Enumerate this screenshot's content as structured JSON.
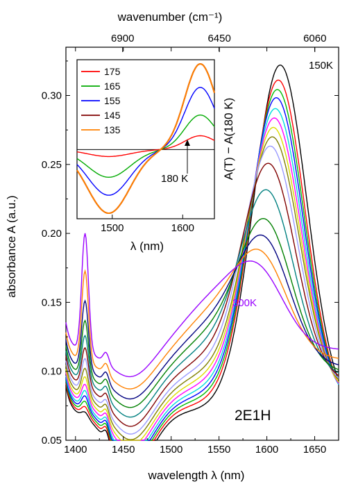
{
  "chart_data": [
    {
      "type": "line",
      "title": "",
      "xlabel": "wavelength λ (nm)",
      "ylabel": "absorbance A (a.u.)",
      "top_xlabel": "wavenumber (cm⁻¹)",
      "xlim": [
        1390,
        1675
      ],
      "ylim": [
        0.05,
        0.335
      ],
      "xticks": [
        "1400",
        "1450",
        "1500",
        "1550",
        "1600",
        "1650"
      ],
      "yticks": [
        "0.05",
        "0.10",
        "0.15",
        "0.20",
        "0.25",
        "0.30"
      ],
      "top_ticks": [
        "6900",
        "6450",
        "6060"
      ],
      "sample_label": "2E1H",
      "annotations": [
        "150K",
        "300K"
      ],
      "grid": false,
      "series_note": "15 temperature curves from 150 K (black, top peak) to 300 K (violet, bottom peak); peak heights read at ~1600–1615 nm",
      "series": [
        {
          "color": "#000000",
          "peak_height": 0.322,
          "peak_x": 1614,
          "valley": 0.05,
          "shoulder_1410": 0.104
        },
        {
          "color": "#ff0000",
          "peak_height": 0.311,
          "peak_x": 1612,
          "valley": 0.053,
          "shoulder_1410": 0.106
        },
        {
          "color": "#00bb00",
          "peak_height": 0.304,
          "peak_x": 1611,
          "valley": 0.056,
          "shoulder_1410": 0.108
        },
        {
          "color": "#0000ff",
          "peak_height": 0.298,
          "peak_x": 1610,
          "valley": 0.059,
          "shoulder_1410": 0.11
        },
        {
          "color": "#00dddd",
          "peak_height": 0.29,
          "peak_x": 1609,
          "valley": 0.062,
          "shoulder_1410": 0.112
        },
        {
          "color": "#ff00ff",
          "peak_height": 0.283,
          "peak_x": 1608,
          "valley": 0.066,
          "shoulder_1410": 0.114
        },
        {
          "color": "#dddd00",
          "peak_height": 0.276,
          "peak_x": 1607,
          "valley": 0.07,
          "shoulder_1410": 0.117
        },
        {
          "color": "#808000",
          "peak_height": 0.269,
          "peak_x": 1606,
          "valley": 0.075,
          "shoulder_1410": 0.12
        },
        {
          "color": "#9999ff",
          "peak_height": 0.262,
          "peak_x": 1604,
          "valley": 0.08,
          "shoulder_1410": 0.124
        },
        {
          "color": "#800000",
          "peak_height": 0.249,
          "peak_x": 1602,
          "valley": 0.086,
          "shoulder_1410": 0.128
        },
        {
          "color": "#008080",
          "peak_height": 0.229,
          "peak_x": 1600,
          "valley": 0.092,
          "shoulder_1410": 0.133
        },
        {
          "color": "#008000",
          "peak_height": 0.207,
          "peak_x": 1598,
          "valley": 0.098,
          "shoulder_1410": 0.14
        },
        {
          "color": "#000080",
          "peak_height": 0.194,
          "peak_x": 1596,
          "valley": 0.105,
          "shoulder_1410": 0.15
        },
        {
          "color": "#ff8000",
          "peak_height": 0.182,
          "peak_x": 1593,
          "valley": 0.114,
          "shoulder_1410": 0.166
        },
        {
          "color": "#9900ff",
          "peak_height": 0.171,
          "peak_x": 1590,
          "valley": 0.126,
          "shoulder_1410": 0.186
        }
      ]
    },
    {
      "type": "line",
      "title": "",
      "xlabel": "λ (nm)",
      "ylabel": "A(T) − A(180 K)",
      "xlim": [
        1450,
        1645
      ],
      "xticks": [
        "1500",
        "1600"
      ],
      "reference_label": "180 K",
      "legend_position": "top-left",
      "series": [
        {
          "name": "175",
          "color": "#ff0000",
          "min": -0.005,
          "max": 0.01
        },
        {
          "name": "165",
          "color": "#00aa00",
          "min": -0.02,
          "max": 0.025
        },
        {
          "name": "155",
          "color": "#0000ff",
          "min": -0.033,
          "max": 0.045
        },
        {
          "name": "145",
          "color": "#800000",
          "min": -0.046,
          "max": 0.062
        },
        {
          "name": "135",
          "color": "#ff8000",
          "min": -0.046,
          "max": 0.062
        }
      ]
    }
  ]
}
